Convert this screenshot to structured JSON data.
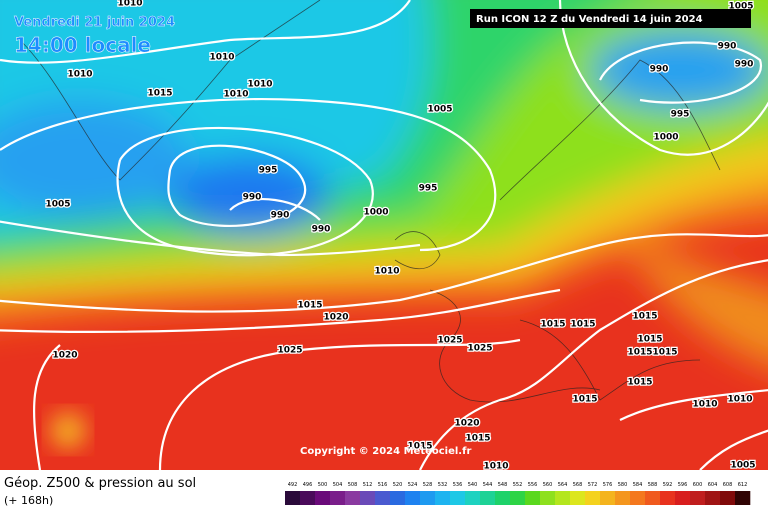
{
  "header": {
    "date": "Vendredi 21 juin 2024",
    "time": "14:00 locale",
    "run": "Run ICON 12 Z du Vendredi 14 juin 2024"
  },
  "copyright": "Copyright © 2024 Meteociel.fr",
  "footer": {
    "title": "Géop. Z500 & pression au sol",
    "subtitle": "(+ 168h)"
  },
  "colorbar": {
    "labels": [
      492,
      496,
      500,
      504,
      508,
      512,
      516,
      520,
      524,
      528,
      532,
      536,
      540,
      544,
      548,
      552,
      556,
      560,
      564,
      568,
      572,
      576,
      580,
      584,
      588,
      592,
      596,
      600,
      604,
      608,
      612
    ]
  },
  "isobar_labels": [
    1010,
    1010,
    1010,
    1015,
    1010,
    1010,
    1005,
    995,
    990,
    990,
    990,
    995,
    1000,
    1005,
    1010,
    1015,
    1020,
    1025,
    1020,
    1025,
    1025,
    1015,
    1015,
    1015,
    1015,
    1015,
    1015,
    1015,
    1010,
    1010,
    1015,
    1020,
    1015,
    1015,
    1010,
    1005,
    1005,
    990,
    990,
    990,
    995,
    1000
  ]
}
